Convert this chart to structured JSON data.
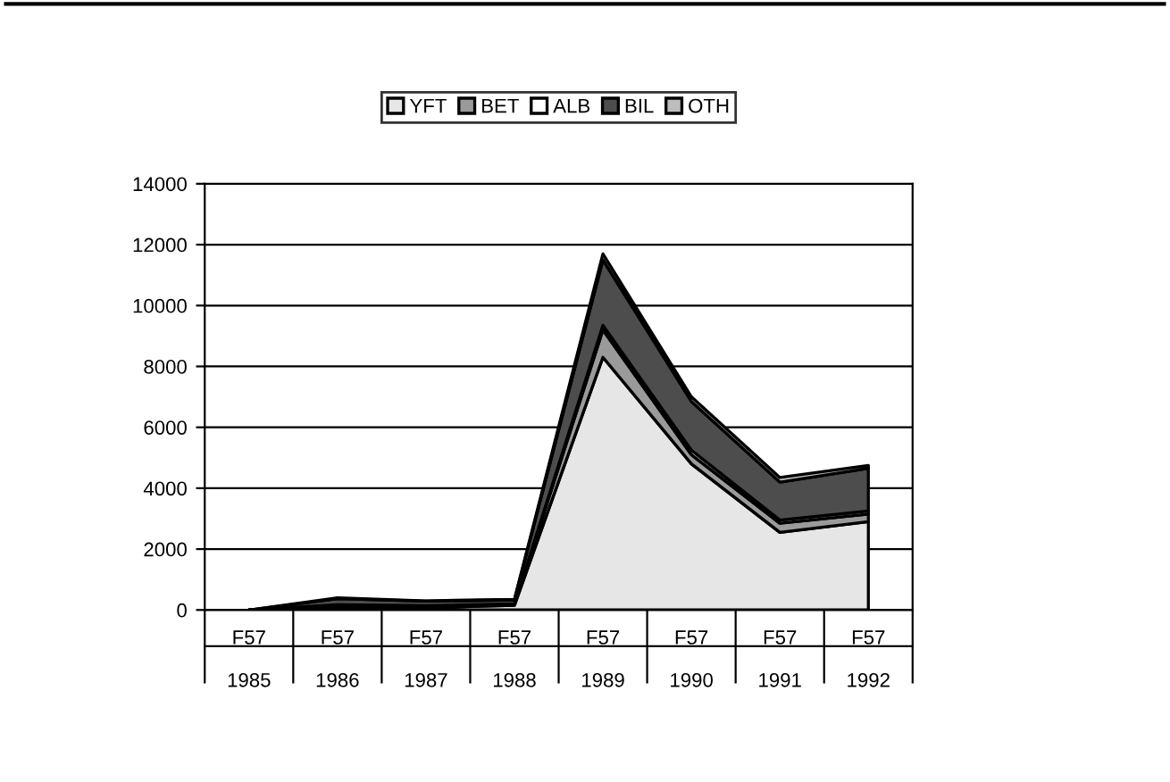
{
  "chart_data": {
    "type": "area",
    "stacked": true,
    "categories": [
      "F57\n\n1985",
      "F57\n\n1986",
      "F57\n\n1987",
      "F57\n\n1988",
      "F57\n\n1989",
      "F57\n\n1990",
      "F57\n\n1991",
      "F57\n\n1992"
    ],
    "series": [
      {
        "name": "YFT",
        "color": "#e6e6e6",
        "values": [
          0,
          100,
          80,
          150,
          8300,
          4800,
          2550,
          2900
        ]
      },
      {
        "name": "BET",
        "color": "#9a9a9a",
        "values": [
          0,
          50,
          40,
          30,
          900,
          300,
          300,
          250
        ]
      },
      {
        "name": "ALB",
        "color": "#ffffff",
        "values": [
          0,
          20,
          20,
          20,
          150,
          150,
          100,
          100
        ]
      },
      {
        "name": "BIL",
        "color": "#4d4d4d",
        "values": [
          0,
          200,
          150,
          130,
          2150,
          1600,
          1250,
          1400
        ]
      },
      {
        "name": "OTH",
        "color": "#bdbdbd",
        "values": [
          0,
          30,
          10,
          20,
          200,
          150,
          150,
          100
        ]
      }
    ],
    "ylim": [
      0,
      14000
    ],
    "yticks": [
      0,
      2000,
      4000,
      6000,
      8000,
      10000,
      12000,
      14000
    ],
    "grid": "y",
    "legend": "top"
  }
}
